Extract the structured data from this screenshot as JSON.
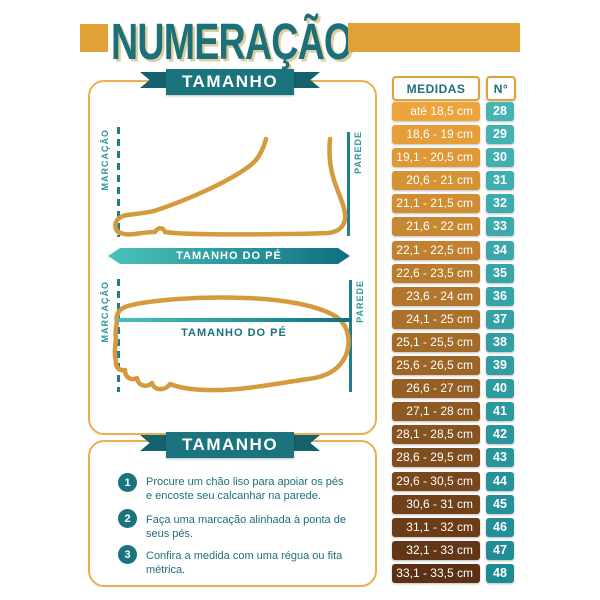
{
  "title": "NUMERAÇÃO",
  "colors": {
    "orange": "#E2A137",
    "orange_border": "#EDAE52",
    "teal": "#1D6F7A",
    "teal_ribbon": "#1A737D",
    "teal_dark": "#13626E",
    "teal_line": "#1F7E87",
    "teal_label": "#2E959B",
    "cream": "#DCCF9E",
    "foot": "#D59A3C",
    "bar_light": "#4AC2BA",
    "bar_dark": "#0F7080"
  },
  "panels": {
    "measure_diagram": {
      "ribbon_label": "TAMANHO",
      "side_view": {
        "marking_label": "MARCAÇÃO",
        "wall_label": "PAREDE",
        "bar_label": "TAMANHO DO PÉ"
      },
      "top_view": {
        "marking_label": "MARCAÇÃO",
        "wall_label": "PAREDE",
        "line_label": "TAMANHO DO PÉ"
      }
    },
    "instructions": {
      "ribbon_label": "TAMANHO",
      "steps": [
        {
          "number": "1",
          "lines": [
            "Procure um chão liso para apoiar os pés",
            "e encoste seu calcanhar na parede."
          ]
        },
        {
          "number": "2",
          "lines": [
            "Faça uma marcação alinhada à ponta de seus pés."
          ]
        },
        {
          "number": "3",
          "lines": [
            "Confira a medida com uma régua ou fita métrica."
          ]
        }
      ]
    }
  },
  "size_table": {
    "headers": {
      "measures": "MEDIDAS",
      "number": "N°"
    },
    "pill_colors": {
      "measure_start": "#ECA43C",
      "measure_end": "#5B3014",
      "size_start": "#46B4B4",
      "size_end": "#1E8A94"
    },
    "rows": [
      {
        "measure": "até 18,5 cm",
        "size": "28"
      },
      {
        "measure": "18,6 - 19 cm",
        "size": "29"
      },
      {
        "measure": "19,1 - 20,5 cm",
        "size": "30"
      },
      {
        "measure": "20,6 - 21 cm",
        "size": "31"
      },
      {
        "measure": "21,1 - 21,5 cm",
        "size": "32"
      },
      {
        "measure": "21,6 - 22 cm",
        "size": "33"
      },
      {
        "measure": "22,1 - 22,5 cm",
        "size": "34"
      },
      {
        "measure": "22,6 - 23,5 cm",
        "size": "35"
      },
      {
        "measure": "23,6 - 24 cm",
        "size": "36"
      },
      {
        "measure": "24,1 - 25 cm",
        "size": "37"
      },
      {
        "measure": "25,1 - 25,5 cm",
        "size": "38"
      },
      {
        "measure": "25,6 - 26,5 cm",
        "size": "39"
      },
      {
        "measure": "26,6 - 27 cm",
        "size": "40"
      },
      {
        "measure": "27,1 - 28 cm",
        "size": "41"
      },
      {
        "measure": "28,1 - 28,5 cm",
        "size": "42"
      },
      {
        "measure": "28,6 - 29,5 cm",
        "size": "43"
      },
      {
        "measure": "29,6 - 30,5 cm",
        "size": "44"
      },
      {
        "measure": "30,6 - 31 cm",
        "size": "45"
      },
      {
        "measure": "31,1 - 32 cm",
        "size": "46"
      },
      {
        "measure": "32,1 - 33 cm",
        "size": "47"
      },
      {
        "measure": "33,1 - 33,5 cm",
        "size": "48"
      }
    ]
  },
  "chart_data": {
    "type": "table",
    "title": "NUMERAÇÃO",
    "columns": [
      "MEDIDAS",
      "N°"
    ],
    "rows": [
      [
        "até 18,5 cm",
        28
      ],
      [
        "18,6 - 19 cm",
        29
      ],
      [
        "19,1 - 20,5 cm",
        30
      ],
      [
        "20,6 - 21 cm",
        31
      ],
      [
        "21,1 - 21,5 cm",
        32
      ],
      [
        "21,6 - 22 cm",
        33
      ],
      [
        "22,1 - 22,5 cm",
        34
      ],
      [
        "22,6 - 23,5 cm",
        35
      ],
      [
        "23,6 - 24 cm",
        36
      ],
      [
        "24,1 - 25 cm",
        37
      ],
      [
        "25,1 - 25,5 cm",
        38
      ],
      [
        "25,6 - 26,5 cm",
        39
      ],
      [
        "26,6 - 27 cm",
        40
      ],
      [
        "27,1 - 28 cm",
        41
      ],
      [
        "28,1 - 28,5 cm",
        42
      ],
      [
        "28,6 - 29,5 cm",
        43
      ],
      [
        "29,6 - 30,5 cm",
        44
      ],
      [
        "30,6 - 31 cm",
        45
      ],
      [
        "31,1 - 32 cm",
        46
      ],
      [
        "32,1 - 33 cm",
        47
      ],
      [
        "33,1 - 33,5 cm",
        48
      ]
    ]
  }
}
